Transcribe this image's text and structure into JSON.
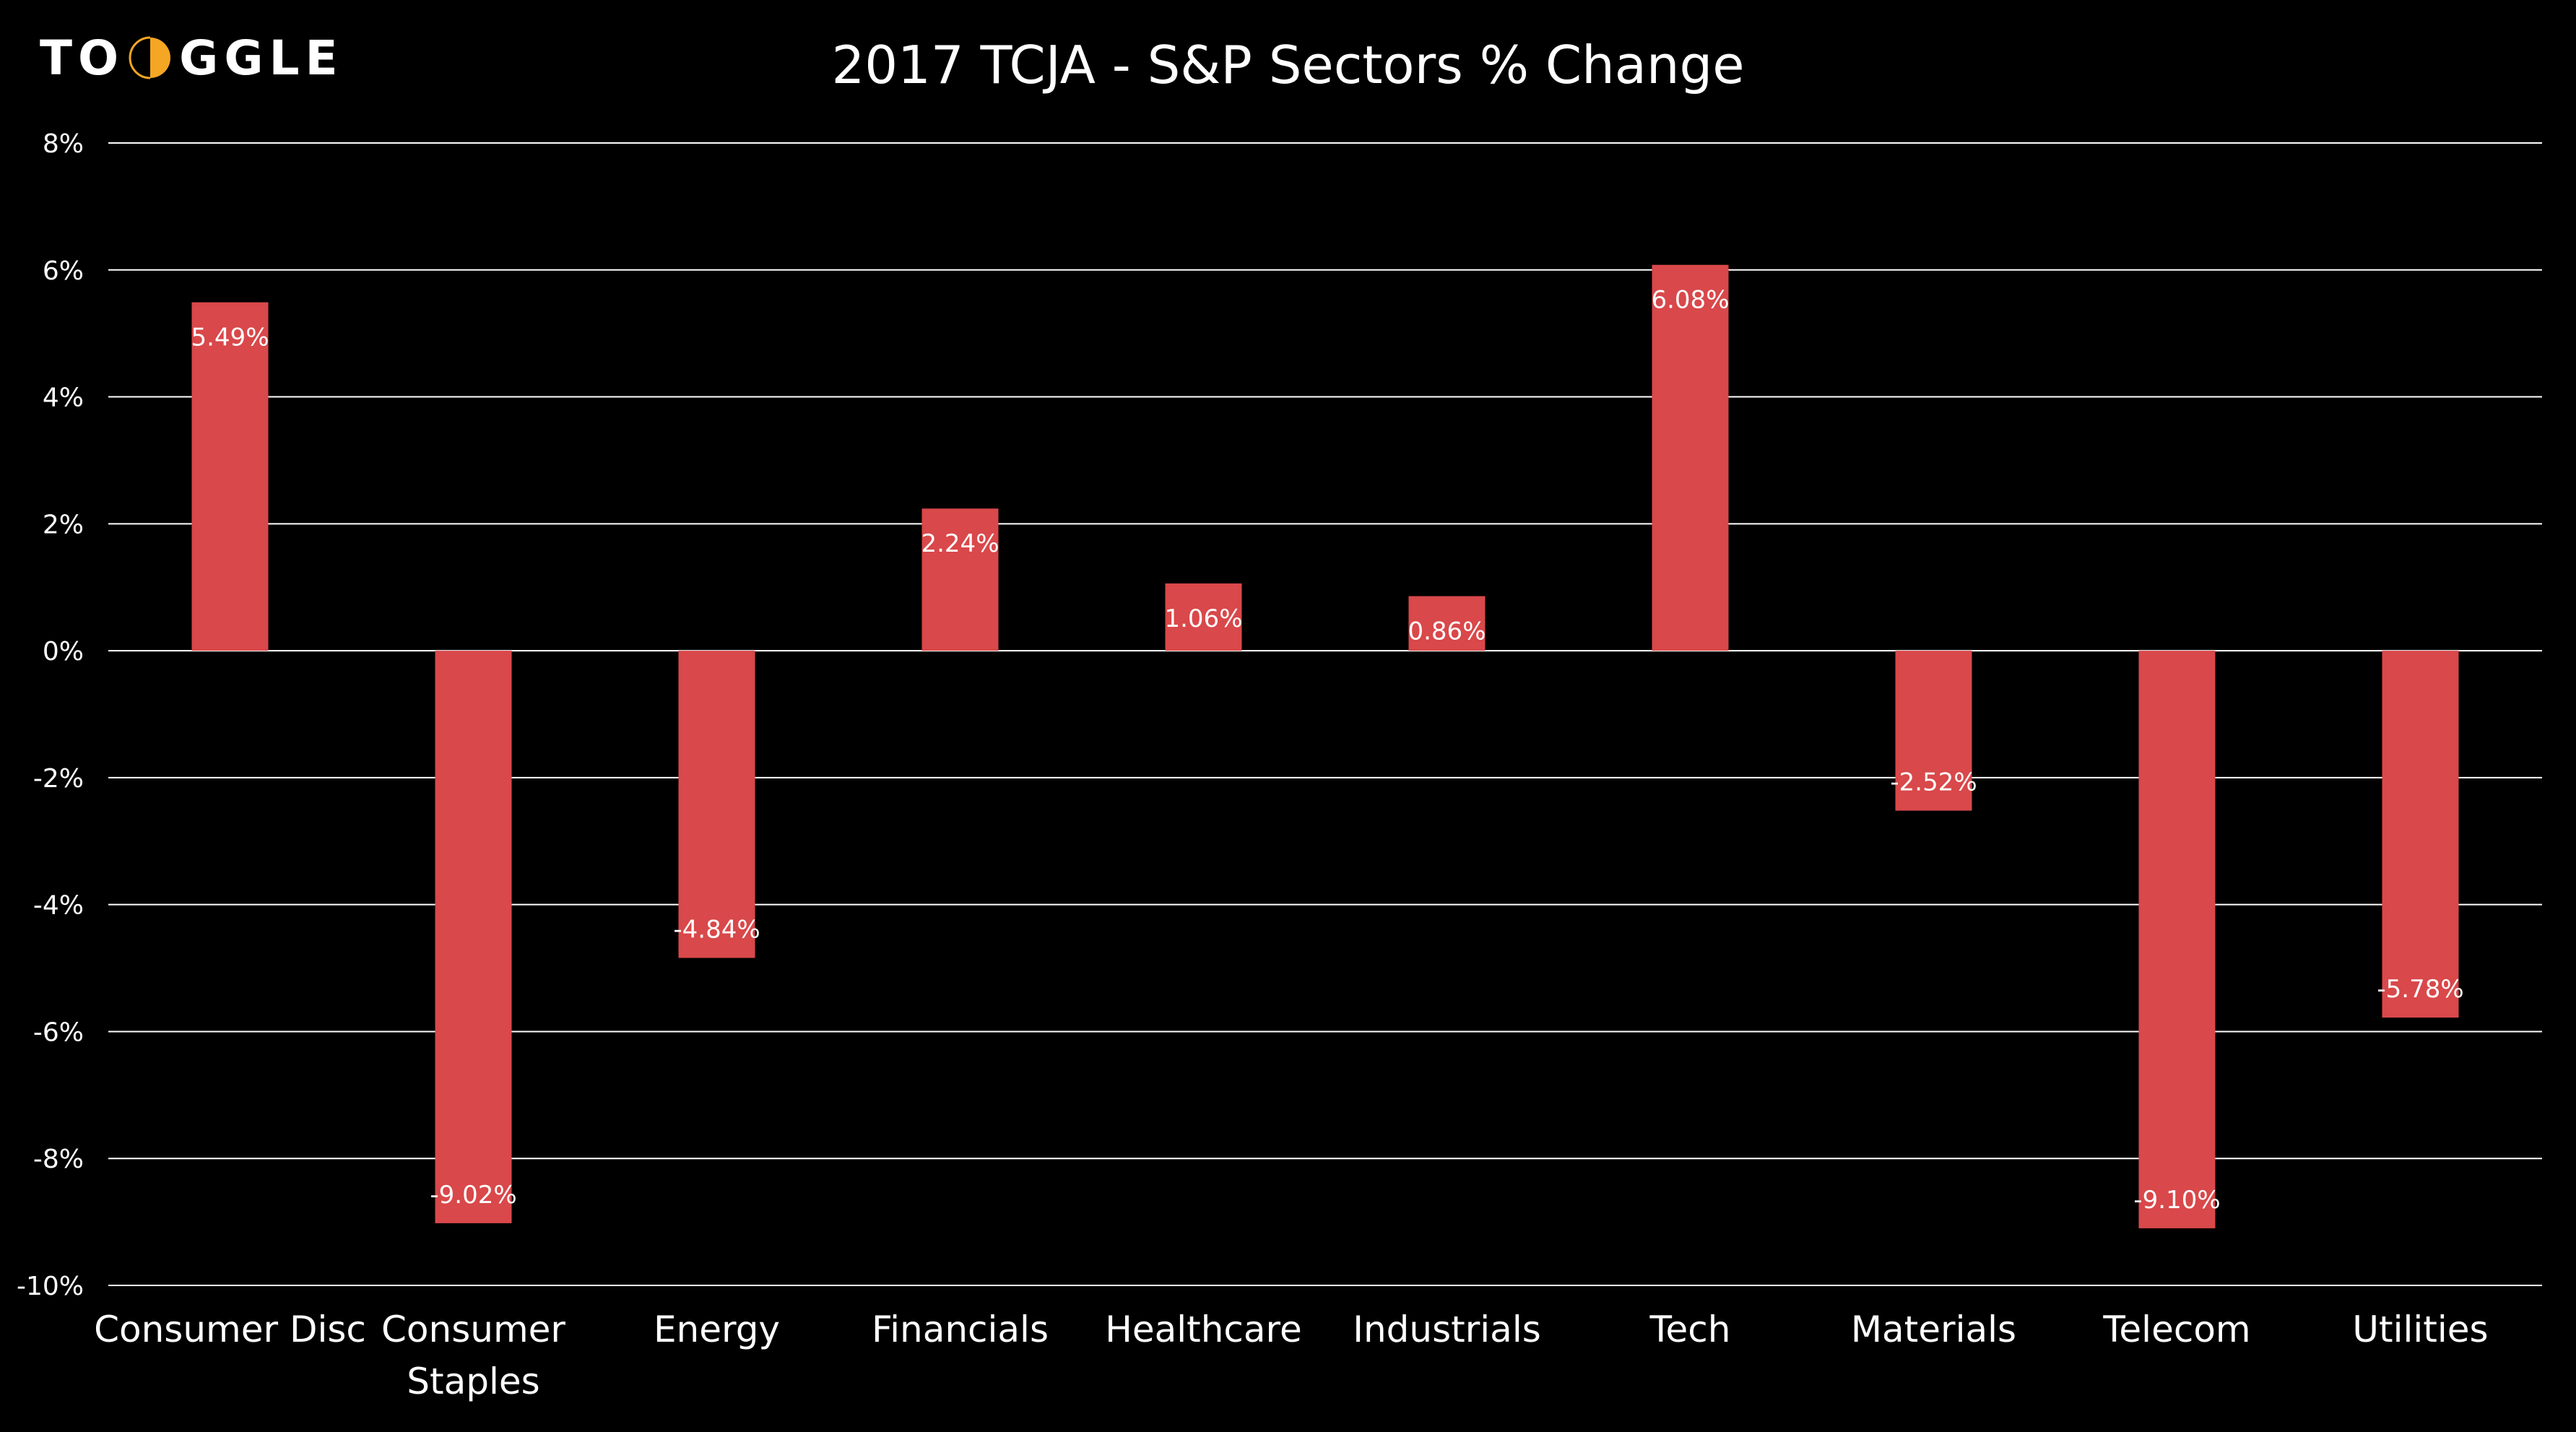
{
  "brand": {
    "logo_left": "TO",
    "logo_right": "GGLE",
    "logo_full": "TOGGLE",
    "accent_color": "#F5A623"
  },
  "colors": {
    "background": "#000000",
    "bar": "#D9484A",
    "gridline": "#FFFFFF",
    "text": "#FFFFFF"
  },
  "chart_data": {
    "type": "bar",
    "title": "2017 TCJA - S&P Sectors % Change",
    "xlabel": "",
    "ylabel": "",
    "categories": [
      "Consumer Disc",
      "Consumer Staples",
      "Energy",
      "Financials",
      "Healthcare",
      "Industrials",
      "Tech",
      "Materials",
      "Telecom",
      "Utilities"
    ],
    "values": [
      5.49,
      -9.02,
      -4.84,
      2.24,
      1.06,
      0.86,
      6.08,
      -2.52,
      -9.1,
      -5.78
    ],
    "data_labels": [
      "5.49%",
      "-9.02%",
      "-4.84%",
      "2.24%",
      "1.06%",
      "0.86%",
      "6.08%",
      "-2.52%",
      "-9.10%",
      "-5.78%"
    ],
    "ylim": [
      -10,
      8
    ],
    "yticks": [
      8,
      6,
      4,
      2,
      0,
      -2,
      -4,
      -6,
      -8,
      -10
    ],
    "ytick_labels": [
      "8%",
      "6%",
      "4%",
      "2%",
      "0%",
      "-2%",
      "-4%",
      "-6%",
      "-8%",
      "-10%"
    ],
    "grid": true,
    "legend": "none"
  }
}
